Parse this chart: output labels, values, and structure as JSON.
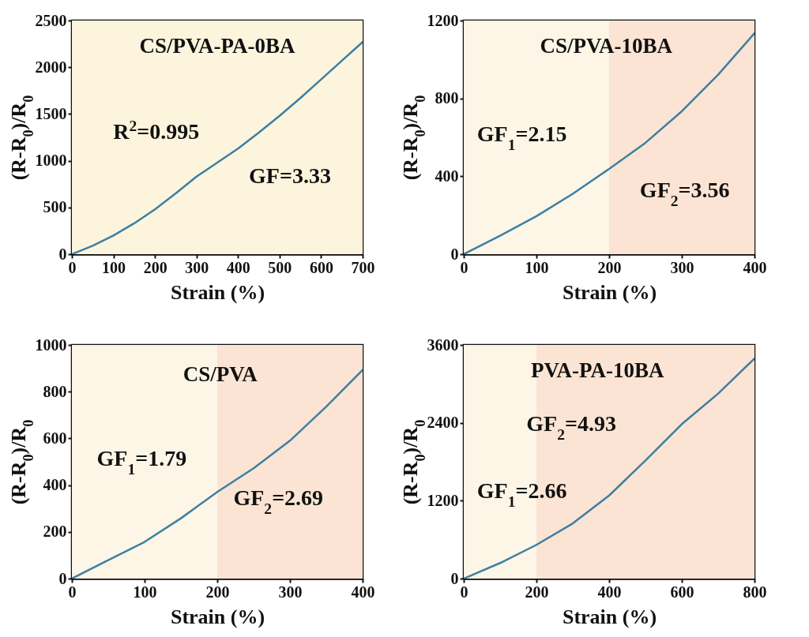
{
  "chart_data": [
    {
      "type": "line",
      "title": "CS/PVA-PA-0BA",
      "xlabel": "Strain (%)",
      "ylabel": "(R-R$_{0}$)/R$_{0}$",
      "xlim": [
        0,
        700
      ],
      "ylim": [
        0,
        2500
      ],
      "xticks": [
        0,
        100,
        200,
        300,
        400,
        500,
        600,
        700
      ],
      "yticks": [
        0,
        500,
        1000,
        1500,
        2000,
        2500
      ],
      "x": [
        0,
        50,
        100,
        150,
        200,
        250,
        300,
        350,
        400,
        450,
        500,
        550,
        600,
        650,
        700
      ],
      "series": [
        {
          "color": "#3d7fa3",
          "values": [
            0,
            90,
            200,
            330,
            480,
            650,
            830,
            980,
            1130,
            1300,
            1480,
            1670,
            1870,
            2070,
            2270
          ]
        }
      ],
      "bands": [
        {
          "axis": "x",
          "from": 0,
          "to": 700,
          "color": "#fcf4dc"
        }
      ],
      "annotations": [
        "R$^{2}$=0.995",
        "GF=3.33"
      ]
    },
    {
      "type": "line",
      "title": "CS/PVA-10BA",
      "xlabel": "Strain (%)",
      "ylabel": "(R-R$_{0}$)/R$_{0}$",
      "xlim": [
        0,
        400
      ],
      "ylim": [
        0,
        1200
      ],
      "xticks": [
        0,
        100,
        200,
        300,
        400
      ],
      "yticks": [
        0,
        400,
        800,
        1200
      ],
      "x": [
        0,
        50,
        100,
        150,
        200,
        250,
        300,
        350,
        400
      ],
      "series": [
        {
          "color": "#3d7fa3",
          "values": [
            0,
            95,
            195,
            310,
            438,
            572,
            734,
            922,
            1135
          ]
        }
      ],
      "bands": [
        {
          "axis": "x",
          "from": 0,
          "to": 200,
          "color": "#fdf6e6"
        },
        {
          "axis": "x",
          "from": 200,
          "to": 400,
          "color": "#fbe4d3"
        }
      ],
      "annotations": [
        "GF$_{1}$=2.15",
        "GF$_{2}$=3.56"
      ]
    },
    {
      "type": "line",
      "title": "CS/PVA",
      "xlabel": "Strain (%)",
      "ylabel": "(R-R$_{0}$)/R$_{0}$",
      "xlim": [
        0,
        400
      ],
      "ylim": [
        0,
        1000
      ],
      "xticks": [
        0,
        100,
        200,
        300,
        400
      ],
      "yticks": [
        0,
        200,
        400,
        600,
        800,
        1000
      ],
      "x": [
        0,
        50,
        100,
        150,
        200,
        250,
        300,
        350,
        400
      ],
      "series": [
        {
          "color": "#3d7fa3",
          "values": [
            0,
            79,
            157,
            258,
            371,
            472,
            590,
            736,
            893
          ]
        }
      ],
      "bands": [
        {
          "axis": "x",
          "from": 0,
          "to": 200,
          "color": "#fdf6e6"
        },
        {
          "axis": "x",
          "from": 200,
          "to": 400,
          "color": "#fbe4d3"
        }
      ],
      "annotations": [
        "GF$_{1}$=1.79",
        "GF$_{2}$=2.69"
      ]
    },
    {
      "type": "line",
      "title": "PVA-PA-10BA",
      "xlabel": "Strain (%)",
      "ylabel": "(R-R$_{0}$)/R$_{0}$",
      "xlim": [
        0,
        800
      ],
      "ylim": [
        0,
        3600
      ],
      "xticks": [
        0,
        200,
        400,
        600,
        800
      ],
      "yticks": [
        0,
        1200,
        2400,
        3600
      ],
      "x": [
        0,
        100,
        200,
        300,
        400,
        500,
        600,
        700,
        800
      ],
      "series": [
        {
          "color": "#3d7fa3",
          "values": [
            0,
            240,
            520,
            850,
            1280,
            1820,
            2380,
            2850,
            3390
          ]
        }
      ],
      "bands": [
        {
          "axis": "x",
          "from": 0,
          "to": 200,
          "color": "#fdf6e6"
        },
        {
          "axis": "x",
          "from": 200,
          "to": 800,
          "color": "#fbe4d3"
        }
      ],
      "annotations": [
        "GF$_{2}$=4.93",
        "GF$_{1}$=2.66"
      ]
    }
  ]
}
